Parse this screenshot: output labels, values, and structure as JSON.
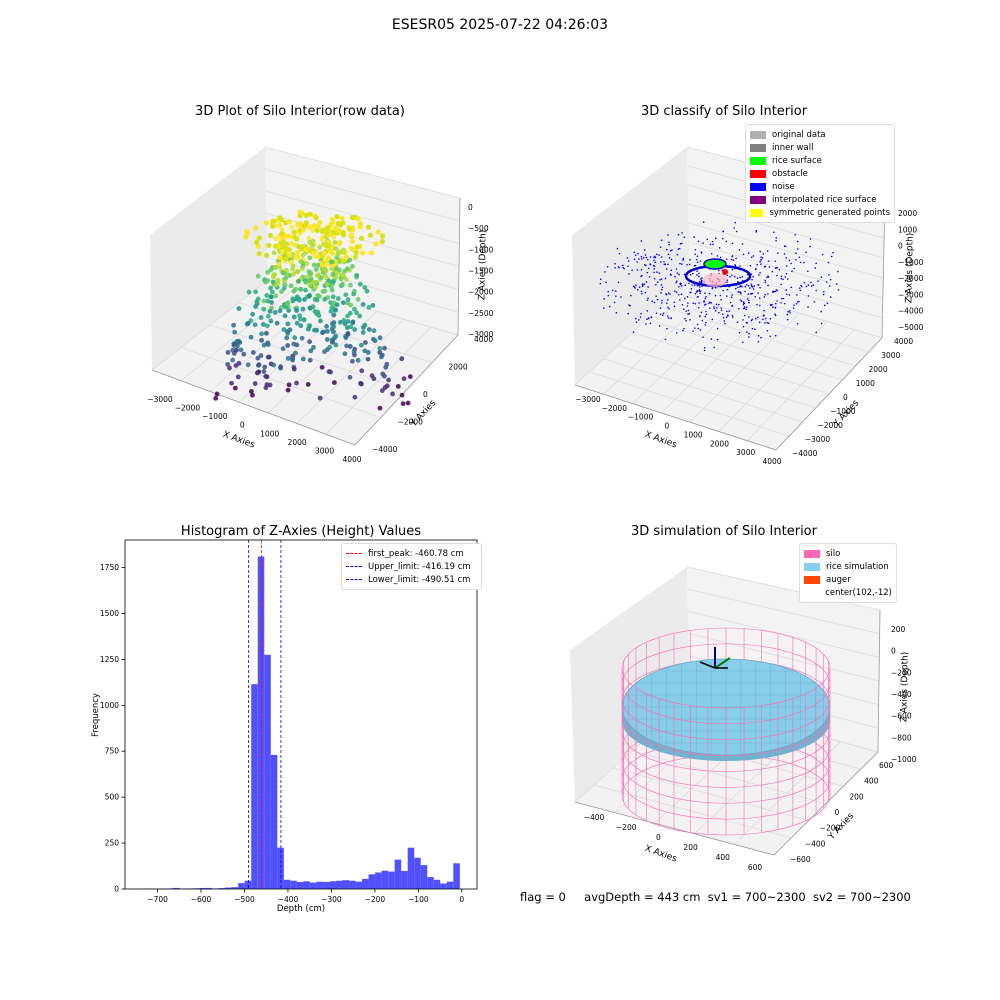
{
  "suptitle": "ESESR05 2025-07-22 04:26:03",
  "footer": {
    "flag": "flag = 0",
    "avg_depth": "avgDepth = 443 cm",
    "sv1": "sv1 = 700~2300",
    "sv2": "sv2 = 700~2300"
  },
  "colors": {
    "histogram_bar": "#5050ff",
    "first_peak_line": "#ff0000",
    "limit_line": "#0000ff",
    "silo": "#ff69b4",
    "rice_simulation": "#87ceeb",
    "auger": "#ff4500"
  },
  "chart_data": [
    {
      "type": "scatter",
      "projection": "3d",
      "title": "3D Plot of Silo Interior(row data)",
      "xlabel": "X Axies",
      "ylabel": "Y Axies",
      "zlabel": "Z Axies (Depth)",
      "x_ticks": [
        "−3000",
        "−2000",
        "−1000",
        "0",
        "1000",
        "2000",
        "3000",
        "4000"
      ],
      "y_ticks": [
        "−4000",
        "−2000",
        "0",
        "2000",
        "4000"
      ],
      "z_ticks": [
        "−3000",
        "−2500",
        "−2000",
        "−1500",
        "−1000",
        "−500",
        "0"
      ],
      "colormap": "viridis"
    },
    {
      "type": "scatter",
      "projection": "3d",
      "title": "3D classify of Silo Interior",
      "xlabel": "X Axies",
      "ylabel": "Y Axies",
      "zlabel": "Z Axies (Depth)",
      "x_ticks": [
        "−3000",
        "−2000",
        "−1000",
        "0",
        "1000",
        "2000",
        "3000",
        "4000"
      ],
      "y_ticks": [
        "−4000",
        "−3000",
        "−2000",
        "−1000",
        "0",
        "1000",
        "2000",
        "3000",
        "4000"
      ],
      "z_ticks": [
        "−5000",
        "−4000",
        "−3000",
        "−2000",
        "−1000",
        "0",
        "1000",
        "2000"
      ],
      "legend": [
        {
          "label": "original data",
          "color": "#b0b0b0"
        },
        {
          "label": "inner wall",
          "color": "#808080"
        },
        {
          "label": "rice surface",
          "color": "#00ff00"
        },
        {
          "label": "obstacle",
          "color": "#ff0000"
        },
        {
          "label": "noise",
          "color": "#0000ff"
        },
        {
          "label": "interpolated rice surface",
          "color": "#800080"
        },
        {
          "label": "symmetric generated points",
          "color": "#ffff00"
        }
      ]
    },
    {
      "type": "bar",
      "title": "Histogram of Z-Axies (Height) Values",
      "xlabel": "Depth (cm)",
      "ylabel": "Frequency",
      "xlim": [
        -775,
        35
      ],
      "ylim": [
        0,
        1900
      ],
      "x_ticks": [
        -700,
        -600,
        -500,
        -400,
        -300,
        -200,
        -100,
        0
      ],
      "y_ticks": [
        0,
        250,
        500,
        750,
        1000,
        1250,
        1500,
        1750
      ],
      "bin_width": 15,
      "bins": [
        {
          "x": -747,
          "v": 1
        },
        {
          "x": -732,
          "v": 2
        },
        {
          "x": -717,
          "v": 2
        },
        {
          "x": -702,
          "v": 1
        },
        {
          "x": -687,
          "v": 2
        },
        {
          "x": -672,
          "v": 3
        },
        {
          "x": -657,
          "v": 6
        },
        {
          "x": -642,
          "v": 2
        },
        {
          "x": -627,
          "v": 3
        },
        {
          "x": -612,
          "v": 4
        },
        {
          "x": -597,
          "v": 5
        },
        {
          "x": -582,
          "v": 6
        },
        {
          "x": -567,
          "v": 3
        },
        {
          "x": -552,
          "v": 5
        },
        {
          "x": -537,
          "v": 8
        },
        {
          "x": -522,
          "v": 10
        },
        {
          "x": -507,
          "v": 32
        },
        {
          "x": -492,
          "v": 45
        },
        {
          "x": -477,
          "v": 1115
        },
        {
          "x": -462,
          "v": 1810
        },
        {
          "x": -447,
          "v": 1275
        },
        {
          "x": -432,
          "v": 730
        },
        {
          "x": -417,
          "v": 225
        },
        {
          "x": -402,
          "v": 50
        },
        {
          "x": -387,
          "v": 45
        },
        {
          "x": -372,
          "v": 38
        },
        {
          "x": -357,
          "v": 42
        },
        {
          "x": -342,
          "v": 35
        },
        {
          "x": -327,
          "v": 40
        },
        {
          "x": -312,
          "v": 38
        },
        {
          "x": -297,
          "v": 42
        },
        {
          "x": -282,
          "v": 45
        },
        {
          "x": -267,
          "v": 48
        },
        {
          "x": -252,
          "v": 45
        },
        {
          "x": -237,
          "v": 40
        },
        {
          "x": -222,
          "v": 55
        },
        {
          "x": -207,
          "v": 80
        },
        {
          "x": -192,
          "v": 90
        },
        {
          "x": -177,
          "v": 100
        },
        {
          "x": -162,
          "v": 95
        },
        {
          "x": -147,
          "v": 160
        },
        {
          "x": -132,
          "v": 98
        },
        {
          "x": -117,
          "v": 225
        },
        {
          "x": -102,
          "v": 170
        },
        {
          "x": -87,
          "v": 130
        },
        {
          "x": -72,
          "v": 65
        },
        {
          "x": -57,
          "v": 50
        },
        {
          "x": -42,
          "v": 30
        },
        {
          "x": -27,
          "v": 40
        },
        {
          "x": -12,
          "v": 140
        }
      ],
      "vlines": [
        {
          "label": "first_peak: -460.78 cm",
          "x": -460.78,
          "color": "#ff0000"
        },
        {
          "label": "Upper_limit: -416.19 cm",
          "x": -416.19,
          "color": "#0000ff"
        },
        {
          "label": "Lower_limit: -490.51 cm",
          "x": -490.51,
          "color": "#0000ff"
        }
      ],
      "legend_position": "upper right"
    },
    {
      "type": "surface",
      "projection": "3d",
      "title": "3D simulation of Silo Interior",
      "xlabel": "X Axies",
      "ylabel": "Y Axies",
      "zlabel": "Z Axies (Depth)",
      "x_ticks": [
        "−400",
        "−200",
        "0",
        "200",
        "400",
        "600"
      ],
      "y_ticks": [
        "−600",
        "−400",
        "−200",
        "0",
        "200",
        "400",
        "600"
      ],
      "z_ticks": [
        "−1000",
        "−800",
        "−600",
        "−400",
        "−200",
        "0",
        "200"
      ],
      "legend": [
        {
          "label": "silo",
          "color": "#ff69b4"
        },
        {
          "label": "rice simulation",
          "color": "#87ceeb"
        },
        {
          "label": "auger",
          "color": "#ff4500"
        },
        {
          "label": "center(102,-12)",
          "color": ""
        }
      ]
    }
  ]
}
